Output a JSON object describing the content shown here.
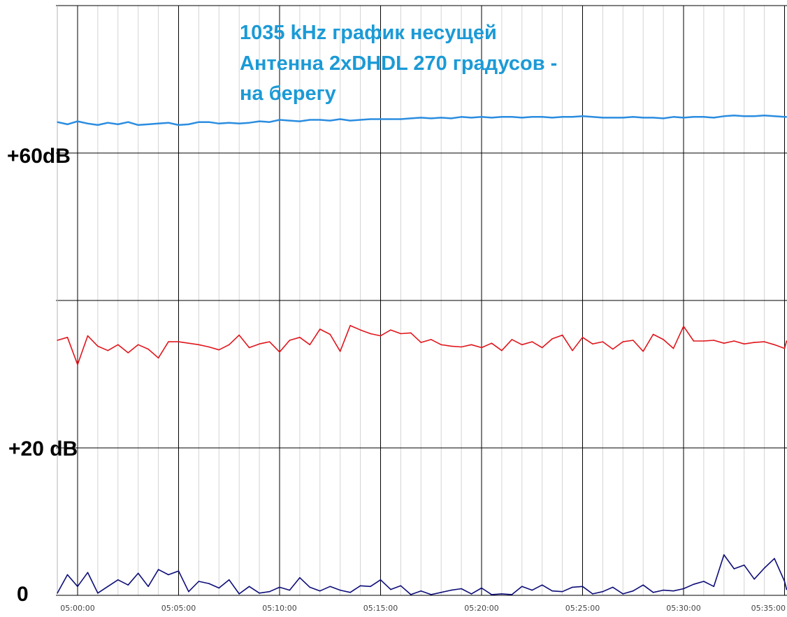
{
  "chart_data": {
    "type": "line",
    "title_lines": [
      "1035 kHz график несущей",
      "Антенна 2xDHDL 270 градусов -",
      "на берегу"
    ],
    "y_labels": [
      {
        "text": "+60dB",
        "value": 60
      },
      {
        "text": "+20 dB",
        "value": 20
      },
      {
        "text": "0",
        "value": 0
      }
    ],
    "x_ticks": [
      "05:00:00",
      "05:05:00",
      "05:10:00",
      "05:15:00",
      "05:20:00",
      "05:25:00",
      "05:30:00",
      "05:35:00"
    ],
    "x_range_minutes": [
      -1,
      35.1
    ],
    "y_range": [
      0,
      80
    ],
    "grid": true,
    "series": [
      {
        "color": "#2b8de0",
        "x": [
          -1,
          -0.5,
          0,
          0.5,
          1,
          1.5,
          2,
          2.5,
          3,
          3.5,
          4,
          4.5,
          5,
          5.5,
          6,
          6.5,
          7,
          7.5,
          8,
          8.5,
          9,
          9.5,
          10,
          10.5,
          11,
          11.5,
          12,
          12.5,
          13,
          13.5,
          14,
          14.5,
          15,
          15.5,
          16,
          16.5,
          17,
          17.5,
          18,
          18.5,
          19,
          19.5,
          20,
          20.5,
          21,
          21.5,
          22,
          22.5,
          23,
          23.5,
          24,
          24.5,
          25,
          25.5,
          26,
          26.5,
          27,
          27.5,
          28,
          28.5,
          29,
          29.5,
          30,
          30.5,
          31,
          31.5,
          32,
          32.5,
          33,
          33.5,
          34,
          34.5,
          35,
          35.1
        ],
        "values": [
          64.2,
          63.9,
          64.3,
          64,
          63.8,
          64.1,
          63.9,
          64.2,
          63.8,
          63.9,
          64,
          64.1,
          63.8,
          63.9,
          64.2,
          64.2,
          64,
          64.1,
          64,
          64.1,
          64.3,
          64.2,
          64.5,
          64.4,
          64.3,
          64.5,
          64.5,
          64.4,
          64.6,
          64.4,
          64.5,
          64.6,
          64.6,
          64.6,
          64.6,
          64.7,
          64.8,
          64.7,
          64.8,
          64.7,
          64.9,
          64.8,
          64.9,
          64.8,
          64.9,
          64.9,
          64.8,
          64.9,
          64.9,
          64.8,
          64.9,
          64.9,
          65,
          64.9,
          64.8,
          64.8,
          64.8,
          64.9,
          64.8,
          64.8,
          64.7,
          64.9,
          64.8,
          64.9,
          64.9,
          64.8,
          65,
          65.1,
          65,
          65,
          65.1,
          65,
          64.9,
          64.9
        ]
      },
      {
        "color": "#e0161c",
        "x": [
          -1,
          -0.5,
          0,
          0.5,
          1,
          1.5,
          2,
          2.5,
          3,
          3.5,
          4,
          4.5,
          5,
          5.5,
          6,
          6.5,
          7,
          7.5,
          8,
          8.5,
          9,
          9.5,
          10,
          10.5,
          11,
          11.5,
          12,
          12.5,
          13,
          13.5,
          14,
          14.5,
          15,
          15.5,
          16,
          16.5,
          17,
          17.5,
          18,
          18.5,
          19,
          19.5,
          20,
          20.5,
          21,
          21.5,
          22,
          22.5,
          23,
          23.5,
          24,
          24.5,
          25,
          25.5,
          26,
          26.5,
          27,
          27.5,
          28,
          28.5,
          29,
          29.5,
          30,
          30.5,
          31,
          31.5,
          32,
          32.5,
          33,
          33.5,
          34,
          34.5,
          35,
          35.1
        ],
        "values": [
          34.6,
          35,
          31.3,
          35.2,
          33.8,
          33.2,
          34,
          32.9,
          34,
          33.4,
          32.2,
          34.4,
          34.4,
          34.2,
          34,
          33.7,
          33.3,
          34,
          35.3,
          33.6,
          34.1,
          34.4,
          33,
          34.6,
          35,
          34,
          36.1,
          35.4,
          33.1,
          36.6,
          36,
          35.5,
          35.2,
          36,
          35.5,
          35.6,
          34.3,
          34.7,
          34,
          33.8,
          33.7,
          34,
          33.6,
          34.2,
          33.2,
          34.7,
          34,
          34.4,
          33.6,
          34.8,
          35.3,
          33.2,
          35,
          34.1,
          34.4,
          33.4,
          34.4,
          34.6,
          33.1,
          35.4,
          34.7,
          33.5,
          36.5,
          34.5,
          34.5,
          34.6,
          34.2,
          34.5,
          34.1,
          34.3,
          34.4,
          34,
          33.5,
          34.5
        ]
      },
      {
        "color": "#0d0d78",
        "x": [
          -1,
          -0.5,
          0,
          0.5,
          1,
          1.5,
          2,
          2.5,
          3,
          3.5,
          4,
          4.5,
          5,
          5.5,
          6,
          6.5,
          7,
          7.5,
          8,
          8.5,
          9,
          9.5,
          10,
          10.5,
          11,
          11.5,
          12,
          12.5,
          13,
          13.5,
          14,
          14.5,
          15,
          15.5,
          16,
          16.5,
          17,
          17.5,
          18,
          18.5,
          19,
          19.5,
          20,
          20.5,
          21,
          21.5,
          22,
          22.5,
          23,
          23.5,
          24,
          24.5,
          25,
          25.5,
          26,
          26.5,
          27,
          27.5,
          28,
          28.5,
          29,
          29.5,
          30,
          30.5,
          31,
          31.5,
          32,
          32.5,
          33,
          33.5,
          34,
          34.5,
          35,
          35.1
        ],
        "values": [
          0.3,
          2.8,
          1.2,
          3.1,
          0.3,
          1.2,
          2.1,
          1.4,
          3,
          1.2,
          3.5,
          2.8,
          3.3,
          0.5,
          1.9,
          1.6,
          1,
          2.1,
          0.2,
          1.2,
          0.3,
          0.5,
          1.1,
          0.7,
          2.4,
          1.1,
          0.6,
          1.2,
          0.7,
          0.4,
          1.3,
          1.2,
          2.1,
          0.8,
          1.3,
          0.1,
          0.6,
          0.1,
          0.4,
          0.7,
          0.9,
          0.2,
          1,
          0.1,
          0.2,
          0.1,
          1.2,
          0.7,
          1.4,
          0.6,
          0.5,
          1.1,
          1.2,
          0.2,
          0.5,
          1.1,
          0.2,
          0.6,
          1.4,
          0.4,
          0.7,
          0.6,
          0.9,
          1.5,
          1.9,
          1.2,
          5.5,
          3.6,
          4.1,
          2.2,
          3.7,
          5,
          1.9,
          0.8
        ]
      }
    ]
  }
}
